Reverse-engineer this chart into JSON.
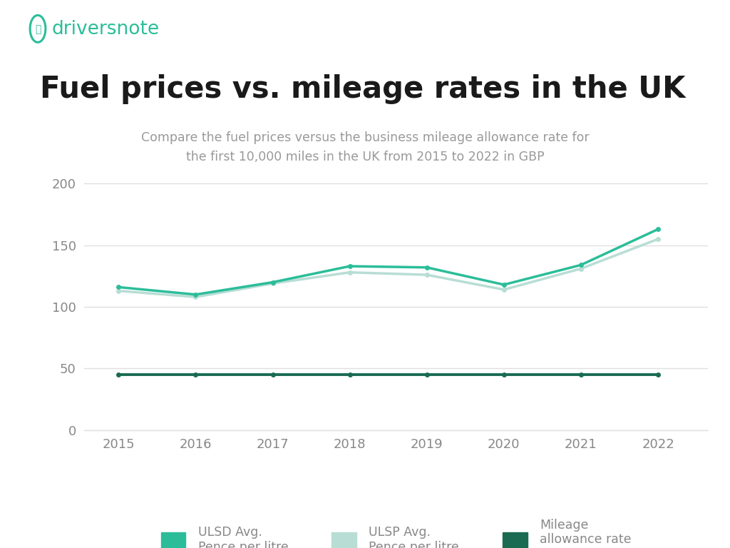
{
  "years": [
    2015,
    2016,
    2017,
    2018,
    2019,
    2020,
    2021,
    2022
  ],
  "ulsd": [
    116,
    110,
    120,
    133,
    132,
    118,
    134,
    163
  ],
  "ulsp": [
    113,
    108,
    119,
    128,
    126,
    114,
    131,
    155
  ],
  "mileage": [
    45,
    45,
    45,
    45,
    45,
    45,
    45,
    45
  ],
  "ulsd_color": "#2bbd99",
  "ulsp_color": "#b8ddd5",
  "mileage_color": "#1a6b52",
  "title": "Fuel prices vs. mileage rates in the UK",
  "subtitle": "Compare the fuel prices versus the business mileage allowance rate for\nthe first 10,000 miles in the UK from 2015 to 2022 in GBP",
  "brand_name": "driversnote",
  "brand_color": "#2bbd99",
  "ylim": [
    0,
    220
  ],
  "yticks": [
    0,
    50,
    100,
    150,
    200
  ],
  "bg_color": "#ffffff",
  "legend_labels": [
    "ULSD Avg.\nPence per litre",
    "ULSP Avg.\nPence per litre",
    "Mileage\nallowance rate\nPence"
  ],
  "grid_color": "#e0e0e0",
  "tick_color": "#888888",
  "title_color": "#1a1a1a",
  "subtitle_color": "#999999"
}
